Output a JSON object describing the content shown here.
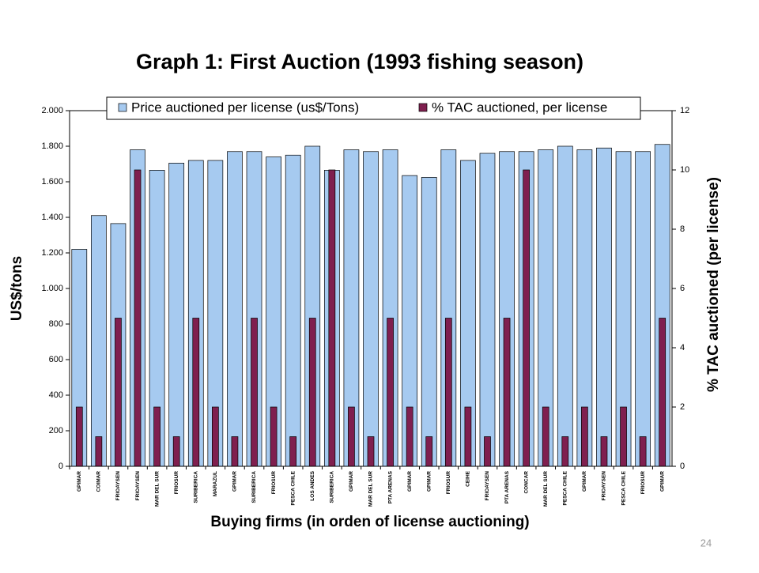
{
  "chart_data": {
    "type": "bar",
    "title": "Graph 1: First Auction (1993 fishing season)",
    "x_label": "Buying firms (in orden of license auctioning)",
    "y_label": "US$/tons",
    "y2_label": "% TAC auctioned (per license)",
    "page_number": "24",
    "categories": [
      "GPIMAR",
      "COIMAR",
      "FRIOAYSEN",
      "FRIOAYSEN",
      "MAR DEL SUR",
      "FRIOSUR",
      "SURIBERICA",
      "MARAZUL",
      "GPIMAR",
      "SURIBERICA",
      "FRIOSUR",
      "PESCA CHILE",
      "LOS ANDES",
      "SURIBERICA",
      "GPIMAR",
      "MAR DEL SUR",
      "PTA ARENAS",
      "GPIMAR",
      "GPIMAR",
      "FRIOSUR",
      "CEIHE",
      "FRIOAYSEN",
      "PTA ARENAS",
      "CONCAR",
      "MAR DEL SUR",
      "PESCA CHILE",
      "GPIMAR",
      "FRIOAYSEN",
      "PESCA CHILE",
      "FRIOSUR",
      "GPIMAR"
    ],
    "series": [
      {
        "name": "Price auctioned per license (us$/Tons)",
        "color": "#a6caf0",
        "values": [
          1220,
          1410,
          1365,
          1780,
          1665,
          1705,
          1720,
          1720,
          1770,
          1770,
          1740,
          1750,
          1800,
          1665,
          1780,
          1770,
          1780,
          1635,
          1625,
          1780,
          1720,
          1760,
          1770,
          1770,
          1780,
          1800,
          1780,
          1790,
          1770,
          1770,
          1810
        ]
      },
      {
        "name": "% TAC auctioned, per license",
        "color": "#7f1f4f",
        "axis": "y2",
        "values": [
          2,
          1,
          5,
          10,
          2,
          1,
          5,
          2,
          1,
          5,
          2,
          1,
          5,
          10,
          2,
          1,
          5,
          2,
          1,
          5,
          2,
          1,
          5,
          10,
          2,
          1,
          2,
          1,
          2,
          1,
          5
        ]
      }
    ],
    "ylim": [
      0,
      2000
    ],
    "yticks": [
      0,
      {
        "value": 200,
        "label": "200"
      },
      400,
      600,
      800,
      {
        "value": 1000,
        "label": "1.000"
      },
      {
        "value": 1200,
        "label": "1.200"
      },
      {
        "value": 1400,
        "label": "1.400"
      },
      {
        "value": 1600,
        "label": "1.600"
      },
      {
        "value": 1800,
        "label": "1.800"
      },
      {
        "value": 2000,
        "label": "2.000"
      }
    ],
    "y2lim": [
      0,
      12
    ],
    "y2ticks": [
      0,
      2,
      4,
      6,
      8,
      10,
      12
    ],
    "legend": "top"
  }
}
